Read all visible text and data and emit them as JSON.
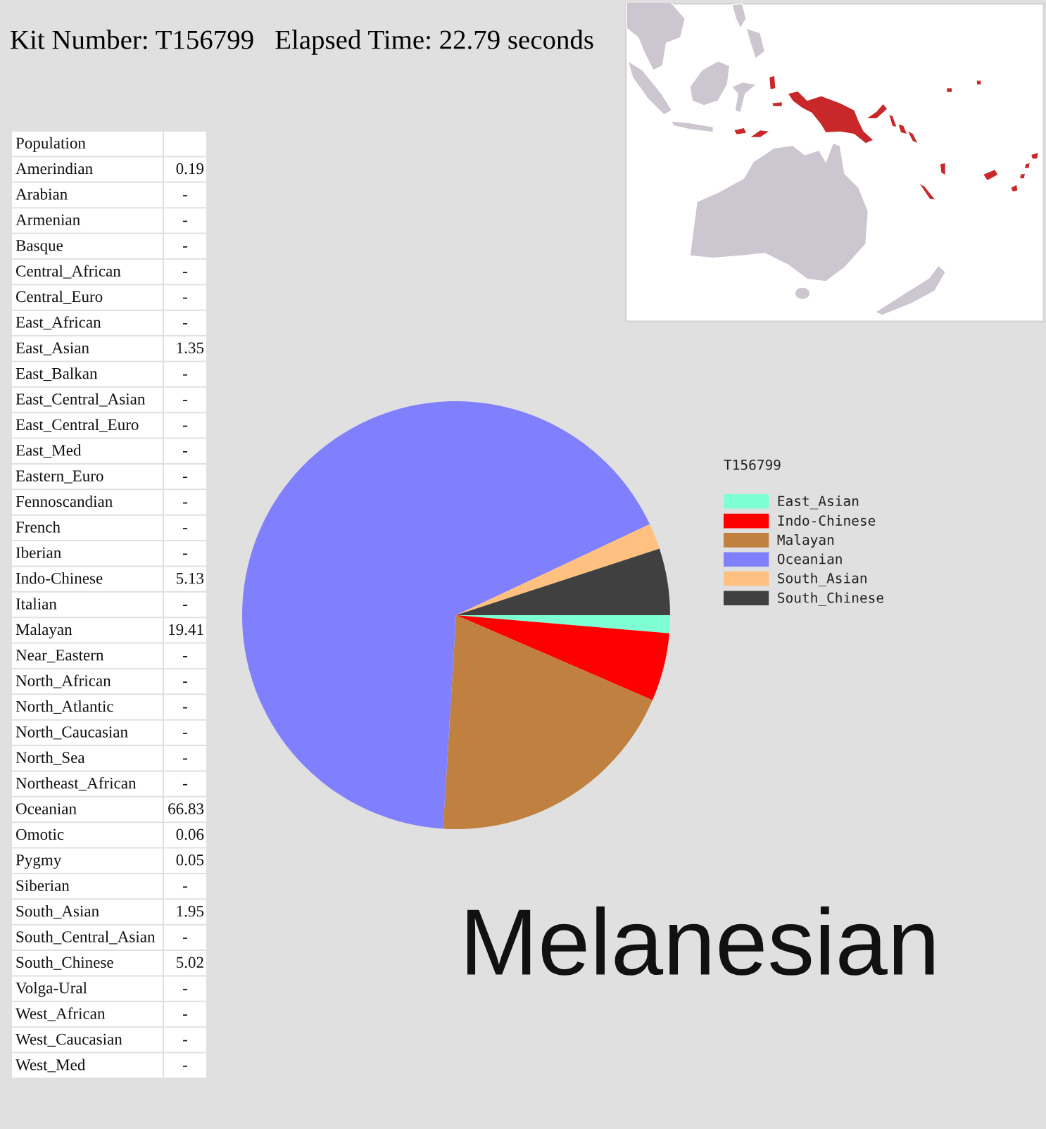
{
  "chart_data": [
    {
      "type": "other",
      "title": "Kit Number: T156799   Elapsed Time: 22.79 seconds",
      "xlabel": "Population",
      "categories": [
        "Amerindian",
        "Arabian",
        "Armenian",
        "Basque",
        "Central_African",
        "Central_Euro",
        "East_African",
        "East_Asian",
        "East_Balkan",
        "East_Central_Asian",
        "East_Central_Euro",
        "East_Med",
        "Eastern_Euro",
        "Fennoscandian",
        "French",
        "Iberian",
        "Indo-Chinese",
        "Italian",
        "Malayan",
        "Near_Eastern",
        "North_African",
        "North_Atlantic",
        "North_Caucasian",
        "North_Sea",
        "Northeast_African",
        "Oceanian",
        "Omotic",
        "Pygmy",
        "Siberian",
        "South_Asian",
        "South_Central_Asian",
        "South_Chinese",
        "Volga-Ural",
        "West_African",
        "West_Caucasian",
        "West_Med"
      ],
      "values": [
        0.19,
        null,
        null,
        null,
        null,
        null,
        null,
        1.35,
        null,
        null,
        null,
        null,
        null,
        null,
        null,
        null,
        5.13,
        null,
        19.41,
        null,
        null,
        null,
        null,
        null,
        null,
        66.83,
        0.06,
        0.05,
        null,
        1.95,
        null,
        5.02,
        null,
        null,
        null,
        null
      ],
      "value_labels": [
        "0.19",
        "-",
        "-",
        "-",
        "-",
        "-",
        "-",
        "1.35",
        "-",
        "-",
        "-",
        "-",
        "-",
        "-",
        "-",
        "-",
        "5.13",
        "-",
        "19.41",
        "-",
        "-",
        "-",
        "-",
        "-",
        "-",
        "66.83",
        "0.06",
        "0.05",
        "-",
        "1.95",
        "-",
        "5.02",
        "-",
        "-",
        "-",
        "-"
      ]
    },
    {
      "type": "pie",
      "categories": [
        "East_Asian",
        "Indo-Chinese",
        "Malayan",
        "Oceanian",
        "South_Asian",
        "South_Chinese"
      ],
      "values": [
        1.35,
        5.13,
        19.41,
        66.83,
        1.95,
        5.02
      ],
      "colors": [
        "#7fffd4",
        "#ff0000",
        "#c08040",
        "#8080ff",
        "#ffc080",
        "#404040"
      ],
      "legend": "right",
      "legend_title": "T156799",
      "annotations": [
        "Melanesian"
      ]
    }
  ]
}
